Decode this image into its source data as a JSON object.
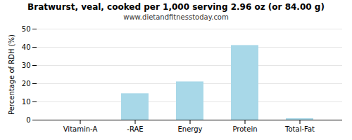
{
  "chart_data": {
    "type": "bar",
    "title": "Bratwurst, veal, cooked per 1,000 serving 2.96 oz (or 84.00 g)",
    "subtitle": "www.dietandfitnesstoday.com",
    "categories": [
      "Vitamin-A",
      "-RAE",
      "Energy",
      "Protein",
      "Total-Fat"
    ],
    "values": [
      0.0,
      14.5,
      21.0,
      41.0,
      0.8
    ],
    "color": "#a8d8e8",
    "ylabel": "Percentage of RDH (%)",
    "ylim": [
      0,
      50
    ],
    "yticks": [
      0,
      10,
      20,
      30,
      40,
      50
    ],
    "grid": true
  }
}
